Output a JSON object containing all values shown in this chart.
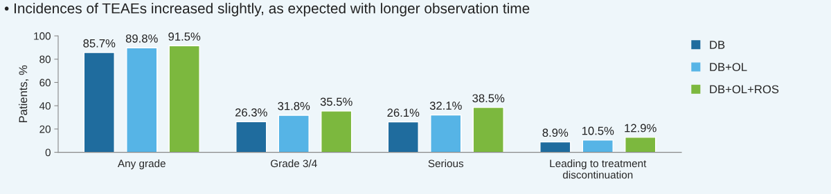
{
  "chart_data": {
    "type": "bar",
    "title": "• Incidences of TEAEs increased slightly, as expected with longer observation time",
    "ylabel": "Patients, %",
    "categories": [
      "Any grade",
      "Grade 3/4",
      "Serious",
      "Leading to treatment\ndiscontinuation"
    ],
    "series": [
      {
        "name": "DB",
        "color": "#1f6c9e",
        "values": [
          85.7,
          26.3,
          26.1,
          8.9
        ],
        "value_labels": [
          "85.7%",
          "26.3%",
          "26.1%",
          "8.9%"
        ]
      },
      {
        "name": "DB+OL",
        "color": "#56b4e6",
        "values": [
          89.8,
          31.8,
          32.1,
          10.5
        ],
        "value_labels": [
          "89.8%",
          "31.8%",
          "32.1%",
          "10.5%"
        ]
      },
      {
        "name": "DB+OL+ROS",
        "color": "#7cb83e",
        "values": [
          91.5,
          35.5,
          38.5,
          12.9
        ],
        "value_labels": [
          "91.5%",
          "35.5%",
          "38.5%",
          "12.9%"
        ]
      }
    ],
    "ylim": [
      0,
      100
    ],
    "yticks": [
      0,
      20,
      40,
      60,
      80,
      100
    ],
    "grid": false,
    "legend": "right"
  }
}
